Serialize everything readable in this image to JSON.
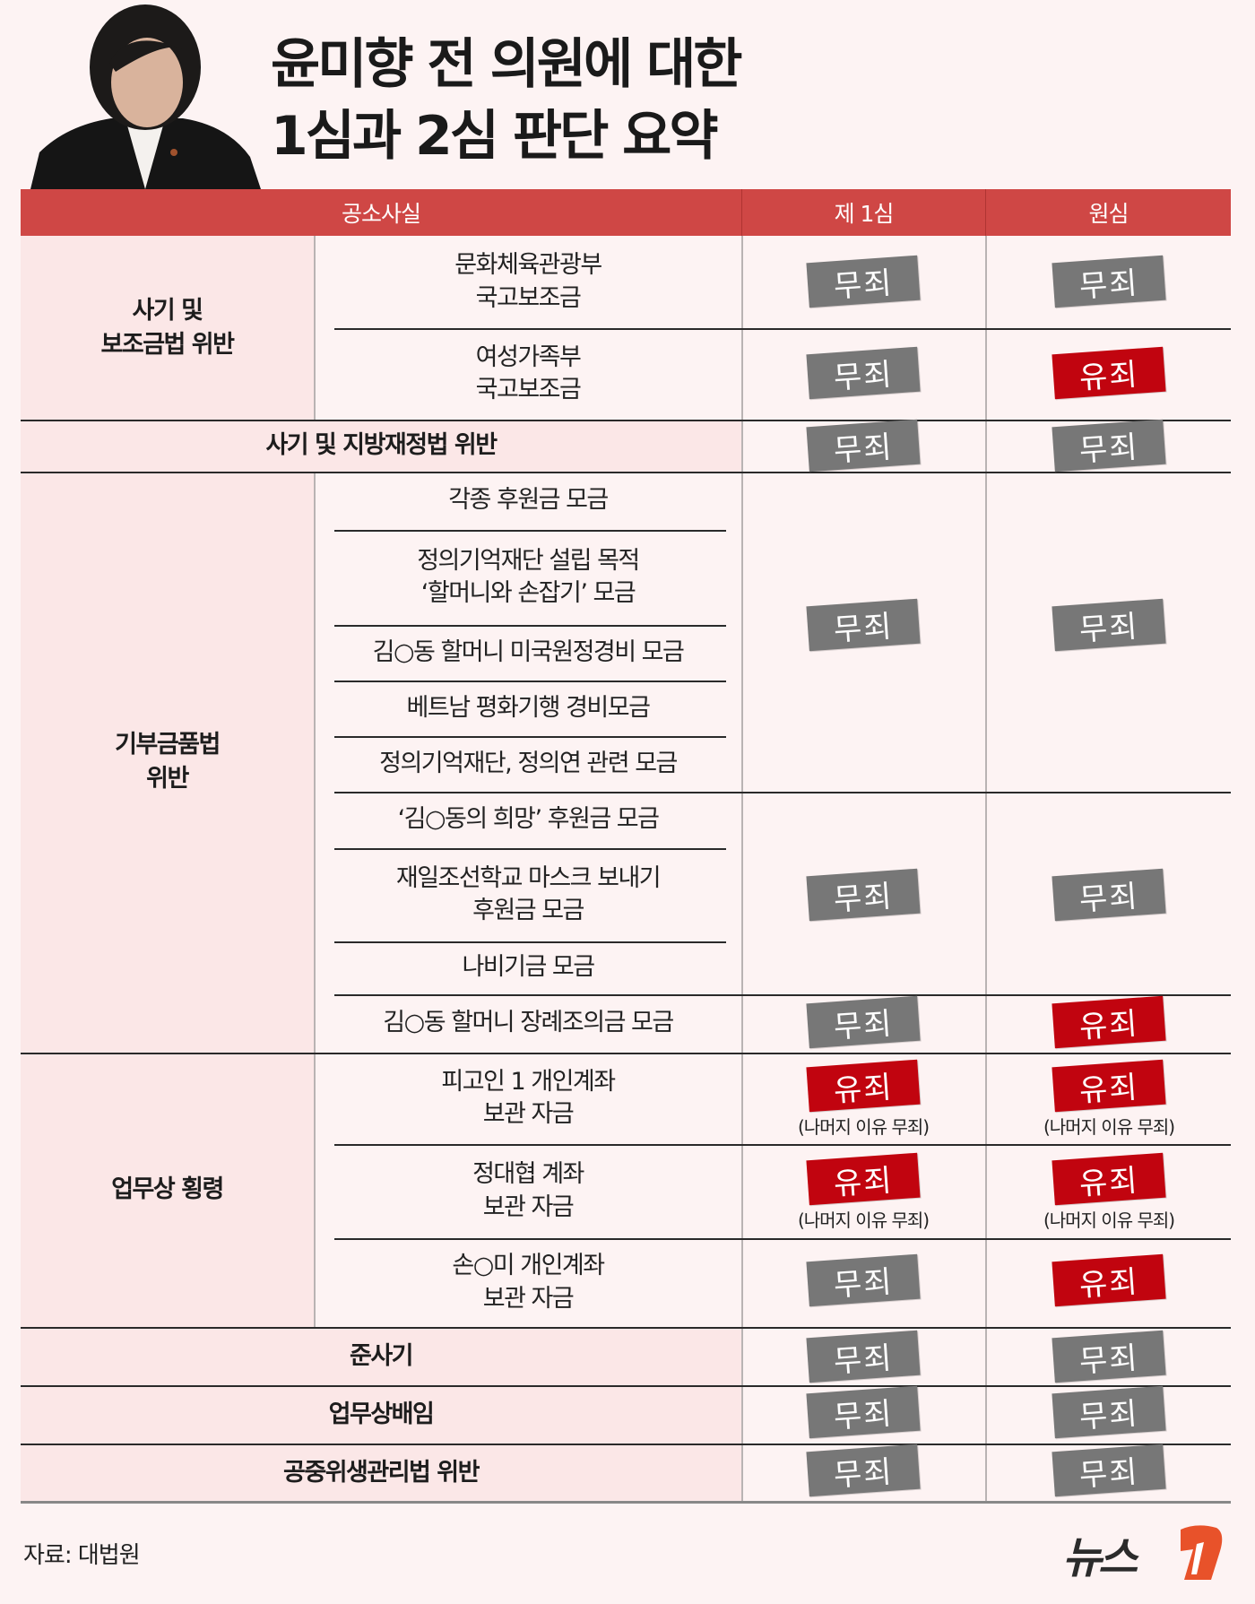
{
  "title": {
    "line1": "윤미향 전 의원에 대한",
    "line2": "1심과 2심 판단 요약"
  },
  "header": {
    "col_charges": "공소사실",
    "col_first": "제 1심",
    "col_original": "원심"
  },
  "categories": [
    {
      "label": "사기 및\n보조금법 위반"
    },
    {
      "label": "사기 및 지방재정법 위반"
    },
    {
      "label": "기부금품법\n위반"
    },
    {
      "label": "업무상 횡령"
    },
    {
      "label": "준사기"
    },
    {
      "label": "업무상배임"
    },
    {
      "label": "공중위생관리법 위반"
    }
  ],
  "items": [
    {
      "label": "문화체육관광부\n국고보조금"
    },
    {
      "label": "여성가족부\n국고보조금"
    },
    {
      "label": "각종 후원금 모금"
    },
    {
      "label": "정의기억재단 설립 목적\n‘할머니와 손잡기’ 모금"
    },
    {
      "label": "김○동 할머니 미국원정경비 모금"
    },
    {
      "label": "베트남 평화기행 경비모금"
    },
    {
      "label": "정의기억재단, 정의연 관련 모금"
    },
    {
      "label": "‘김○동의 희망’ 후원금 모금"
    },
    {
      "label": "재일조선학교 마스크 보내기\n후원금 모금"
    },
    {
      "label": "나비기금 모금"
    },
    {
      "label": "김○동 할머니 장례조의금 모금"
    },
    {
      "label": "피고인 1 개인계좌\n보관 자금"
    },
    {
      "label": "정대협 계좌\n보관 자금"
    },
    {
      "label": "손○미 개인계좌\n보관 자금"
    }
  ],
  "verdicts": [
    {
      "first": "무죄",
      "original": "무죄"
    },
    {
      "first": "무죄",
      "original": "유죄"
    },
    {
      "first": "무죄",
      "original": "무죄"
    },
    {
      "first": "무죄",
      "original": "무죄"
    },
    {
      "first": "무죄",
      "original": "무죄"
    },
    {
      "first": "무죄",
      "original": "유죄"
    },
    {
      "first": "유죄",
      "original": "유죄",
      "first_note": "(나머지 이유 무죄)",
      "original_note": "(나머지 이유 무죄)"
    },
    {
      "first": "유죄",
      "original": "유죄",
      "first_note": "(나머지 이유 무죄)",
      "original_note": "(나머지 이유 무죄)"
    },
    {
      "first": "무죄",
      "original": "유죄"
    },
    {
      "first": "무죄",
      "original": "무죄"
    },
    {
      "first": "무죄",
      "original": "무죄"
    },
    {
      "first": "무죄",
      "original": "무죄"
    }
  ],
  "colors": {
    "header": "#cf4745",
    "guilty": "#c1040f",
    "not_guilty": "#777777",
    "logo_accent": "#e8522a"
  },
  "footer": {
    "source": "자료: 대법원",
    "logo": "뉴스1"
  }
}
